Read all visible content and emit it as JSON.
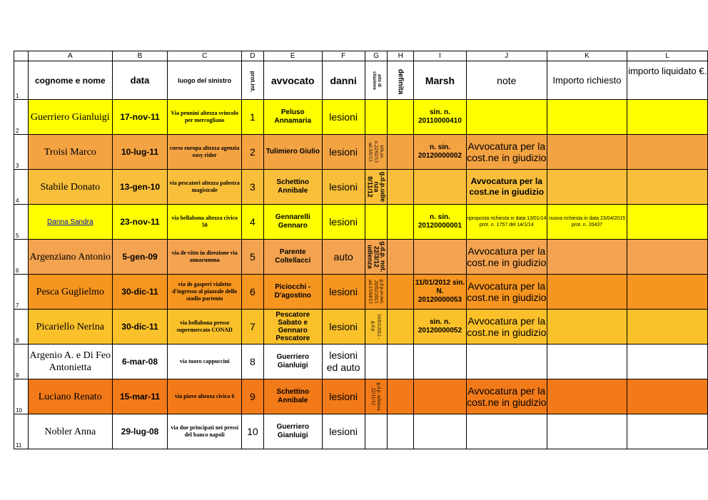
{
  "columns": [
    "A",
    "B",
    "C",
    "D",
    "E",
    "F",
    "G",
    "H",
    "I",
    "J",
    "K",
    "L"
  ],
  "header": {
    "row_number": "1",
    "cognome": "cognome e nome",
    "data": "data",
    "luogo": "luogo del sinistro",
    "prot": "prot.int.",
    "avvocato": "avvocato",
    "danni": "danni",
    "atto": "atto di citazione",
    "definita": "definita",
    "marsh": "Marsh",
    "note": "note",
    "importo_richiesto": "Importo richiesto",
    "importo_liquidato": "importo liquidato €."
  },
  "rows": [
    {
      "n": "2",
      "bg": "#ffff00",
      "cognome": "Guerriero Gianluigi",
      "data": "17-nov-11",
      "luogo": "Via pennini altezza svincolo per mercogliano",
      "prot": "1",
      "avvocato": "Peluso Annamaria",
      "danni": "lesioni",
      "atto": "",
      "definita": "",
      "marsh": "sin. n. 20110000410",
      "note": "",
      "importo_richiesto": "",
      "importo_liquidato": ""
    },
    {
      "n": "3",
      "bg": "#f4a343",
      "cognome": "Troisi Marco",
      "data": "10-lug-11",
      "luogo": "corso europa altezza agenzia easy rider",
      "prot": "2",
      "avvocato": "Tulimiero Giulio",
      "danni": "lesioni",
      "atto": "trib.av. n.22/02/13 ud.3/6/13",
      "definita": "",
      "marsh": "n. sin. 20120000002",
      "note": "Avvocatura per la cost.ne in giudizio",
      "importo_richiesto": "",
      "importo_liquidato": ""
    },
    {
      "n": "4",
      "bg": "#f9bf3b",
      "cognome": "Stabile Donato",
      "data": "13-gen-10",
      "luogo": "via pescatori altezza palestra magistrale",
      "prot": "3",
      "avvocato": "Schettino Annibale",
      "danni": "lesioni",
      "atto": "g.d.p.udie nza 8/11/12",
      "definita": "",
      "marsh": "",
      "note": "Avvocatura per la cost.ne in giudizio",
      "importo_richiesto": "",
      "importo_liquidato": ""
    },
    {
      "n": "5",
      "bg": "#ffff00",
      "cognome": "Danna Sandra",
      "data": "23-nov-11",
      "luogo": "via bellabona altezza civico 50",
      "prot": "4",
      "avvocato": "Gennarelli Gennaro",
      "danni": "lesioni",
      "atto": "",
      "definita": "",
      "marsh": "n. sin. 20120000001",
      "note": "riproposta richiesta in data 13/01/14 prot. n. 1757 del 14/1/14",
      "importo_richiesto": "nuova richiesta in data 23/04/2015 prot. n. 20437",
      "importo_liquidato": ""
    },
    {
      "n": "6",
      "bg": "#f4a350",
      "cognome": "Argenziano Antonio",
      "data": "5-gen-09",
      "luogo": "via de vitto in direzione via annarumma",
      "prot": "5",
      "avvocato": "Parente Coltellacci",
      "danni": "auto",
      "atto": "g.d.p. not. 22/3/12 udienza",
      "definita": "",
      "marsh": "",
      "note": "Avvocatura per la cost.ne in giudizio",
      "importo_richiesto": "",
      "importo_liquidato": ""
    },
    {
      "n": "7",
      "bg": "#f6951f",
      "cognome": "Pesca Guglielmo",
      "data": "30-dic-11",
      "luogo": "via de gasperi vialetto d'ingresso al piazzale dello stadio partenio",
      "prot": "6",
      "avvocato": "Piciocchi - D'agostino",
      "danni": "lesioni",
      "atto": "g.d.p.av.not. 20/02/2013 ud.15/04/13",
      "definita": "",
      "marsh": "11/01/2012 sin. N. 20120000053",
      "note": "Avvocatura per la cost.ne in giudizio",
      "importo_richiesto": "",
      "importo_liquidato": ""
    },
    {
      "n": "8",
      "bg": "#fac12a",
      "cognome": "Picariello Nerina",
      "data": "30-dic-11",
      "luogo": "via bellabona presso supermercato CONAD",
      "prot": "7",
      "avvocato": "Pescatore Sabato e Gennaro Pescatore",
      "danni": "lesioni",
      "atto": "16/03/2012 - g.d.p.",
      "definita": "",
      "marsh": "sin. n. 20120000052",
      "note": "Avvocatura per la cost.ne in giudizio",
      "importo_richiesto": "",
      "importo_liquidato": ""
    },
    {
      "n": "9",
      "bg": "#ffffff",
      "cognome": "Argenio A. e Di Feo Antonietta",
      "data": "6-mar-08",
      "luogo": "via tuoro cappuccini",
      "prot": "8",
      "avvocato": "Guerriero Gianluigi",
      "danni": "lesioni ed auto",
      "atto": "",
      "definita": "",
      "marsh": "",
      "note": "",
      "importo_richiesto": "",
      "importo_liquidato": ""
    },
    {
      "n": "10",
      "bg": "#f27a19",
      "cognome": "Luciano Renato",
      "data": "15-mar-11",
      "luogo": "via piave altezza civico 6",
      "prot": "9",
      "avvocato": "Schettino Annibale",
      "danni": "lesioni",
      "atto": "g.d.p. udienza 22/11/12",
      "definita": "",
      "marsh": "",
      "note": "Avvocatura per la cost.ne in giudizio",
      "importo_richiesto": "",
      "importo_liquidato": ""
    },
    {
      "n": "11",
      "bg": "#ffffff",
      "cognome": "Nobler Anna",
      "data": "29-lug-08",
      "luogo": "via due principati nei pressi del banco napoli",
      "prot": "10",
      "avvocato": "Guerriero Gianluigi",
      "danni": "lesioni",
      "atto": "",
      "definita": "",
      "marsh": "",
      "note": "",
      "importo_richiesto": "",
      "importo_liquidato": ""
    }
  ]
}
